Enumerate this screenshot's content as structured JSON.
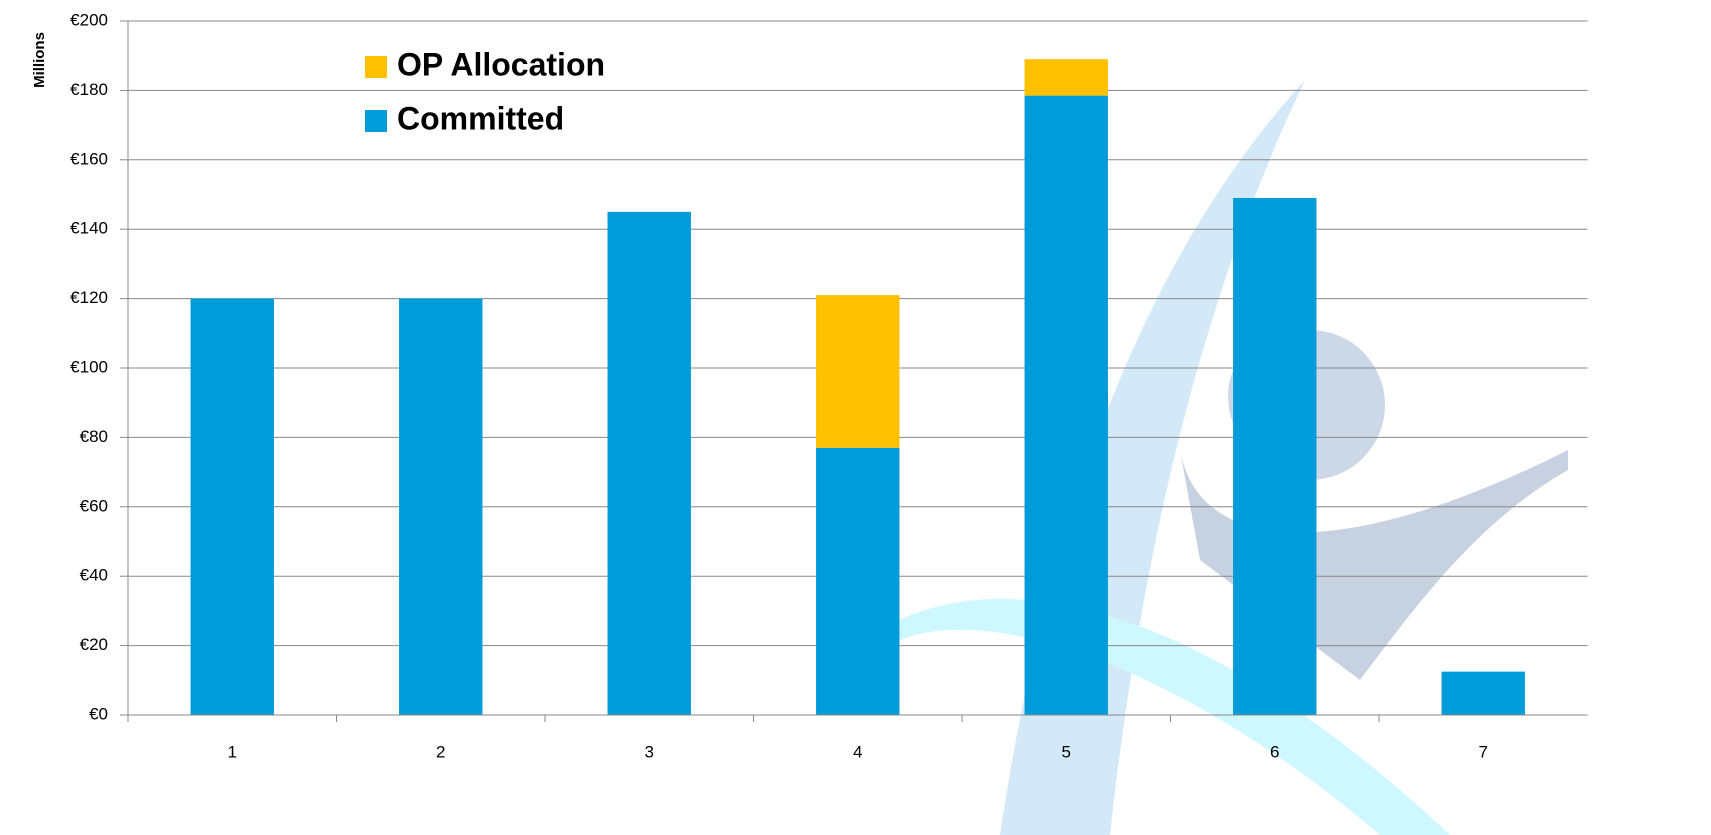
{
  "chart_data": {
    "type": "stacked_bar",
    "y_label": "Millions",
    "categories": [
      "1",
      "2",
      "3",
      "4",
      "5",
      "6",
      "7"
    ],
    "series": [
      {
        "name": "Committed",
        "color": "#009cda",
        "values": [
          120,
          120,
          145,
          77,
          178.5,
          149,
          12.5
        ]
      },
      {
        "name": "OP Allocation",
        "color": "#ffc000",
        "values": [
          0,
          0,
          0,
          44,
          10.5,
          0,
          0
        ]
      }
    ],
    "ylim": [
      0,
      200
    ],
    "yticks": [
      {
        "value": 0,
        "label": "€0"
      },
      {
        "value": 20,
        "label": "€20"
      },
      {
        "value": 40,
        "label": "€40"
      },
      {
        "value": 60,
        "label": "€60"
      },
      {
        "value": 80,
        "label": "€80"
      },
      {
        "value": 100,
        "label": "€100"
      },
      {
        "value": 120,
        "label": "€120"
      },
      {
        "value": 140,
        "label": "€140"
      },
      {
        "value": 160,
        "label": "€160"
      },
      {
        "value": 180,
        "label": "€180"
      },
      {
        "value": 200,
        "label": "€200"
      }
    ],
    "grid": true,
    "legend": "top-left"
  }
}
